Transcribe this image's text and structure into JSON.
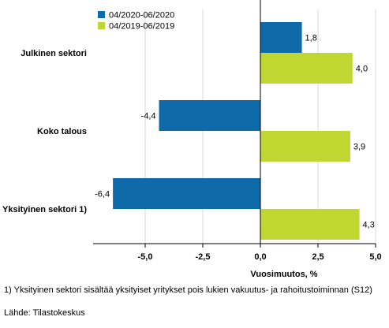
{
  "chart_data": {
    "type": "bar",
    "orientation": "horizontal",
    "categories": [
      "Julkinen sektori",
      "Koko talous",
      "Yksityinen sektori 1)"
    ],
    "series": [
      {
        "name": "04/2020-06/2020",
        "values": [
          1.8,
          -4.4,
          -6.4
        ],
        "color": "#0e6aa8",
        "labels": [
          "1,8",
          "-4,4",
          "-6,4"
        ]
      },
      {
        "name": "04/2019-06/2019",
        "values": [
          4.0,
          3.9,
          4.3
        ],
        "color": "#bfd730",
        "labels": [
          "4,0",
          "3,9",
          "4,3"
        ]
      }
    ],
    "xlim": [
      -7.5,
      5.0
    ],
    "xticks": [
      -5.0,
      -2.5,
      0.0,
      2.5,
      5.0
    ],
    "xtick_labels": [
      "-5,0",
      "-2,5",
      "0,0",
      "2,5",
      "5,0"
    ],
    "xlabel": "Vuosimuutos, %",
    "ylabel": "",
    "grid": "vertical",
    "legend_position": "top-left"
  },
  "footnotes": {
    "note": "1) Yksityinen sektori sisältää yksityiset yritykset pois lukien vakuutus- ja rahoitustoiminnan (S12)",
    "source": "Lähde: Tilastokeskus"
  }
}
